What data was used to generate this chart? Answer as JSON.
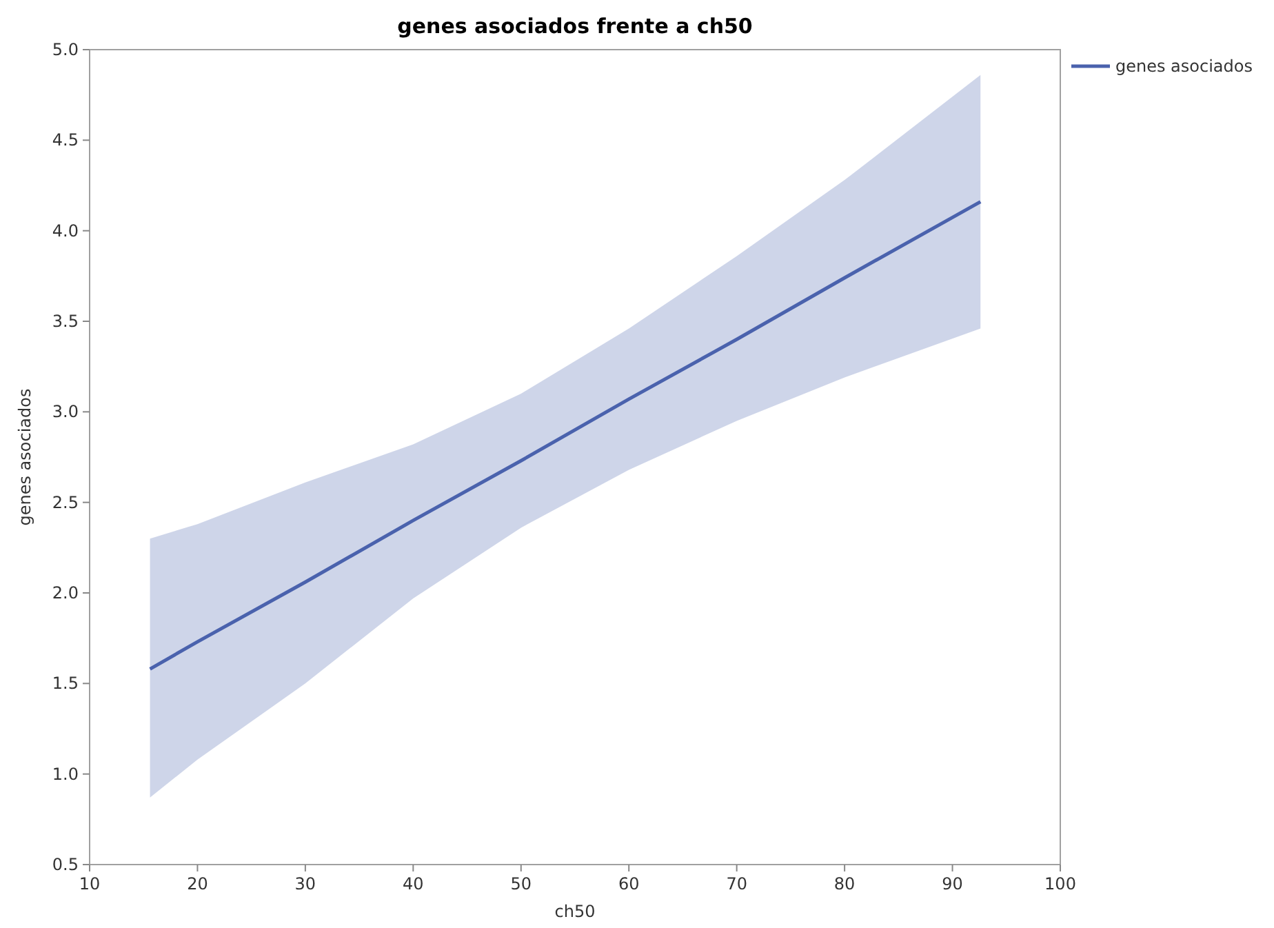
{
  "chart_data": {
    "type": "line",
    "title": "genes asociados frente a ch50",
    "xlabel": "ch50",
    "ylabel": "genes asociados",
    "xlim": [
      10,
      100
    ],
    "xticks": [
      10,
      20,
      30,
      40,
      50,
      60,
      70,
      80,
      90,
      100
    ],
    "ylim": [
      0.5,
      5.0
    ],
    "yticks": [
      {
        "value": 0.5,
        "label": "0.5"
      },
      {
        "value": 1,
        "label": "1.0"
      },
      {
        "value": 1.5,
        "label": "1.5"
      },
      {
        "value": 2,
        "label": "2.0"
      },
      {
        "value": 2.5,
        "label": "2.5"
      },
      {
        "value": 3,
        "label": "3.0"
      },
      {
        "value": 3.5,
        "label": "3.5"
      },
      {
        "value": 4,
        "label": "4.0"
      },
      {
        "value": 4.5,
        "label": "4.5"
      },
      {
        "value": 5,
        "label": "5.0"
      }
    ],
    "legend": "top right",
    "grid": false,
    "series": [
      {
        "name": "genes asociados",
        "color": "#4a62ad",
        "x": [
          15.6,
          20,
          30,
          40,
          50,
          60,
          70,
          80,
          92.6
        ],
        "values": [
          1.58,
          1.73,
          2.06,
          2.4,
          2.73,
          3.07,
          3.4,
          3.74,
          4.16
        ],
        "lower": [
          0.87,
          1.08,
          1.5,
          1.97,
          2.36,
          2.68,
          2.95,
          3.19,
          3.46
        ],
        "upper": [
          2.3,
          2.38,
          2.61,
          2.82,
          3.1,
          3.46,
          3.86,
          4.28,
          4.86
        ]
      }
    ]
  }
}
